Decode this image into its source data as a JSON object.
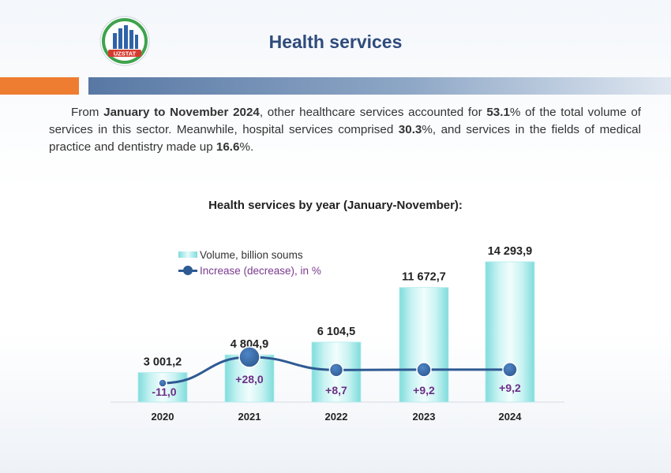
{
  "header": {
    "logo_text": "UZSTAT",
    "title": "Health services"
  },
  "intro": {
    "parts": [
      {
        "text": "From ",
        "bold": false
      },
      {
        "text": "January to November 2024",
        "bold": true
      },
      {
        "text": ", other healthcare services accounted for ",
        "bold": false
      },
      {
        "text": "53.1",
        "bold": true
      },
      {
        "text": "% of the total volume of services in this sector. Meanwhile, hospital services comprised ",
        "bold": false
      },
      {
        "text": "30.3",
        "bold": true
      },
      {
        "text": "%, and services in the fields of medical practice and dentistry made up ",
        "bold": false
      },
      {
        "text": "16.6",
        "bold": true
      },
      {
        "text": "%.",
        "bold": false
      }
    ]
  },
  "chart_data": {
    "type": "bar",
    "title": "Health services by year (January-November):",
    "categories": [
      "2020",
      "2021",
      "2022",
      "2023",
      "2024"
    ],
    "series": [
      {
        "name": "Volume, billion soums",
        "type": "bar",
        "values": [
          3001.2,
          4804.9,
          6104.5,
          11672.7,
          14293.9
        ],
        "labels": [
          "3 001,2",
          "4 804,9",
          "6 104,5",
          "11 672,7",
          "14 293,9"
        ]
      },
      {
        "name": "Increase (decrease), in %",
        "type": "line",
        "values": [
          -11.0,
          28.0,
          8.7,
          9.2,
          9.2
        ],
        "labels": [
          "-11,0",
          "+28,0",
          "+8,7",
          "+9,2",
          "+9,2"
        ]
      }
    ],
    "legend_position": "top-left",
    "grid": false,
    "colors": {
      "bar": "#c8f2f2",
      "bar_edge": "#7fdcdc",
      "line": "#2e5a93",
      "line_label": "#6b2f86",
      "bar_label": "#222222"
    }
  }
}
